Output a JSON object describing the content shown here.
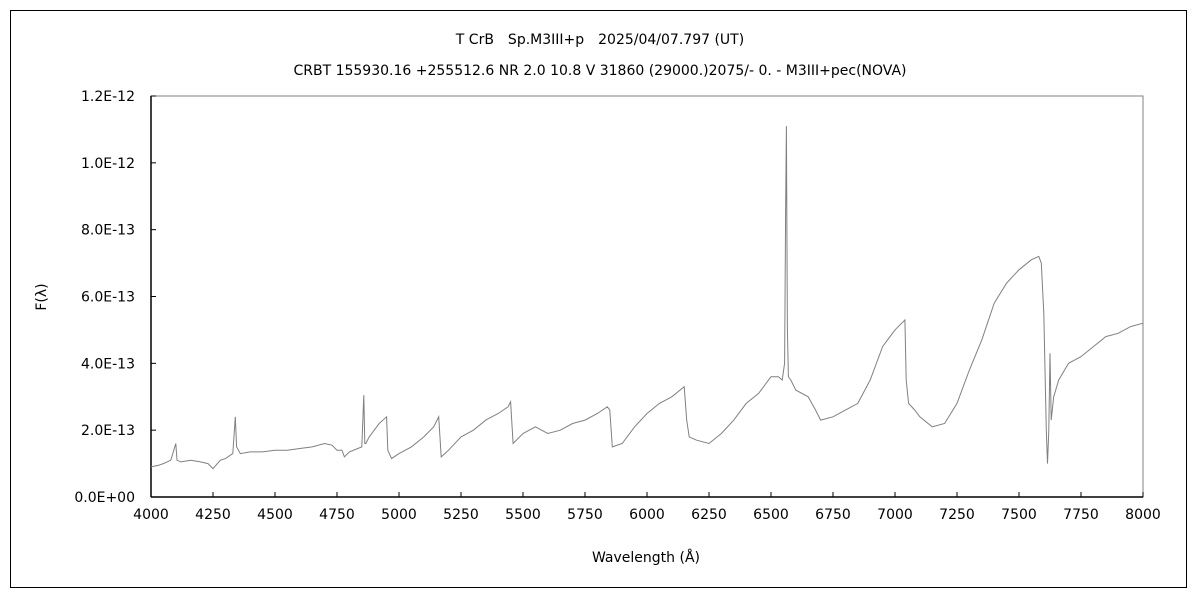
{
  "chart_data": {
    "type": "line",
    "title": "T CrB　Sp.M3III+p　2025/04/07.797 (UT)",
    "subtitle": "CRBT 155930.16 +255512.6 NR 2.0 10.8 V 31860 (29000.)2075/-  0. - M3III+pec(NOVA)",
    "xlabel": "Wavelength (Å)",
    "ylabel": "F(λ)",
    "xlim": [
      4000,
      8000
    ],
    "ylim": [
      0,
      1.2e-12
    ],
    "xticks": [
      "4000",
      "4250",
      "4500",
      "4750",
      "5000",
      "5250",
      "5500",
      "5750",
      "6000",
      "6250",
      "6500",
      "6750",
      "7000",
      "7250",
      "7500",
      "7750",
      "8000"
    ],
    "yticks": [
      "0.0E+00",
      "2.0E-13",
      "4.0E-13",
      "6.0E-13",
      "8.0E-13",
      "1.0E-12",
      "1.2E-12"
    ],
    "grid": false,
    "line_color": "#808080",
    "series": [
      {
        "name": "T CrB spectrum",
        "y_unit_scale": 1e-13,
        "x": [
          4000,
          4030,
          4050,
          4080,
          4100,
          4105,
          4120,
          4160,
          4200,
          4230,
          4250,
          4280,
          4300,
          4330,
          4340,
          4345,
          4360,
          4400,
          4450,
          4500,
          4550,
          4600,
          4650,
          4700,
          4730,
          4750,
          4770,
          4780,
          4800,
          4850,
          4858,
          4862,
          4866,
          4880,
          4920,
          4950,
          4955,
          4970,
          5000,
          5050,
          5100,
          5140,
          5160,
          5170,
          5200,
          5250,
          5300,
          5350,
          5400,
          5440,
          5450,
          5460,
          5500,
          5550,
          5600,
          5650,
          5700,
          5750,
          5800,
          5840,
          5850,
          5860,
          5900,
          5950,
          6000,
          6050,
          6100,
          6150,
          6160,
          6170,
          6200,
          6250,
          6300,
          6350,
          6400,
          6450,
          6500,
          6530,
          6545,
          6555,
          6559,
          6562,
          6564,
          6566,
          6570,
          6580,
          6600,
          6650,
          6680,
          6700,
          6750,
          6800,
          6850,
          6900,
          6950,
          7000,
          7040,
          7045,
          7055,
          7080,
          7100,
          7150,
          7200,
          7250,
          7300,
          7350,
          7400,
          7450,
          7500,
          7550,
          7580,
          7590,
          7600,
          7610,
          7615,
          7620,
          7625,
          7630,
          7640,
          7660,
          7700,
          7750,
          7800,
          7850,
          7900,
          7950,
          8000
        ],
        "y": [
          0.9,
          0.95,
          1.0,
          1.1,
          1.6,
          1.1,
          1.05,
          1.1,
          1.05,
          1.0,
          0.85,
          1.1,
          1.15,
          1.3,
          2.4,
          1.5,
          1.3,
          1.35,
          1.35,
          1.4,
          1.4,
          1.45,
          1.5,
          1.6,
          1.55,
          1.4,
          1.4,
          1.2,
          1.35,
          1.5,
          3.05,
          1.6,
          1.6,
          1.8,
          2.2,
          2.4,
          1.4,
          1.15,
          1.3,
          1.5,
          1.8,
          2.1,
          2.4,
          1.2,
          1.4,
          1.8,
          2.0,
          2.3,
          2.5,
          2.7,
          2.85,
          1.6,
          1.9,
          2.1,
          1.9,
          2.0,
          2.2,
          2.3,
          2.5,
          2.7,
          2.6,
          1.5,
          1.6,
          2.1,
          2.5,
          2.8,
          3.0,
          3.3,
          2.3,
          1.8,
          1.7,
          1.6,
          1.9,
          2.3,
          2.8,
          3.1,
          3.6,
          3.6,
          3.5,
          4.0,
          8.5,
          11.1,
          8.0,
          5.0,
          3.6,
          3.5,
          3.2,
          3.0,
          2.6,
          2.3,
          2.4,
          2.6,
          2.8,
          3.5,
          4.5,
          5.0,
          5.3,
          3.5,
          2.8,
          2.6,
          2.4,
          2.1,
          2.2,
          2.8,
          3.8,
          4.7,
          5.8,
          6.4,
          6.8,
          7.1,
          7.2,
          7.0,
          5.5,
          2.0,
          1.0,
          2.0,
          4.3,
          2.3,
          3.0,
          3.5,
          4.0,
          4.2,
          4.5,
          4.8,
          4.9,
          5.1,
          5.2
        ]
      }
    ]
  }
}
